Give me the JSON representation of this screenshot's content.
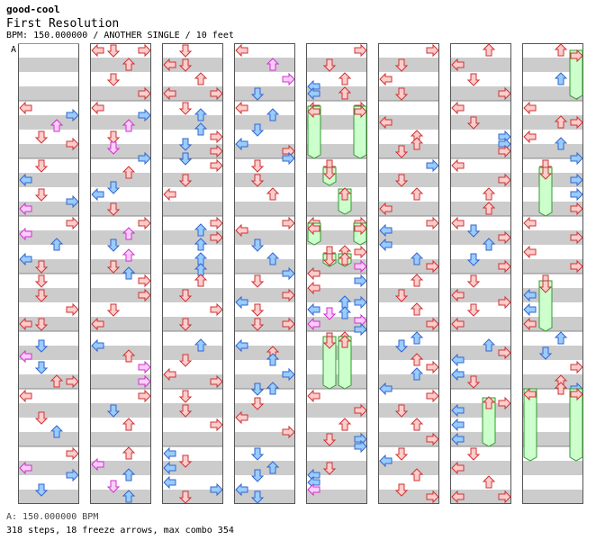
{
  "header": {
    "artist": "good-cool",
    "title": "First Resolution",
    "info": "BPM: 150.000000 / ANOTHER SINGLE / 10 feet"
  },
  "bpm_marker_label": "A",
  "footer": {
    "bpm_line": "A: 150.000000 BPM",
    "summary": "318 steps, 18 freeze arrows, max combo 354"
  },
  "colors": {
    "stripe_gray": "#cccccc",
    "quarter_note": "#ffcccc",
    "quarter_stroke": "#cc3333",
    "eighth_note": "#99ccff",
    "eighth_stroke": "#3366cc",
    "sixteenth_note": "#ffccff",
    "sixteenth_stroke": "#cc33cc",
    "freeze_fill": "#ccffcc",
    "freeze_stroke": "#339933"
  },
  "icons": {
    "left": "left-arrow-icon",
    "down": "down-arrow-icon",
    "up": "up-arrow-icon",
    "right": "right-arrow-icon"
  }
}
